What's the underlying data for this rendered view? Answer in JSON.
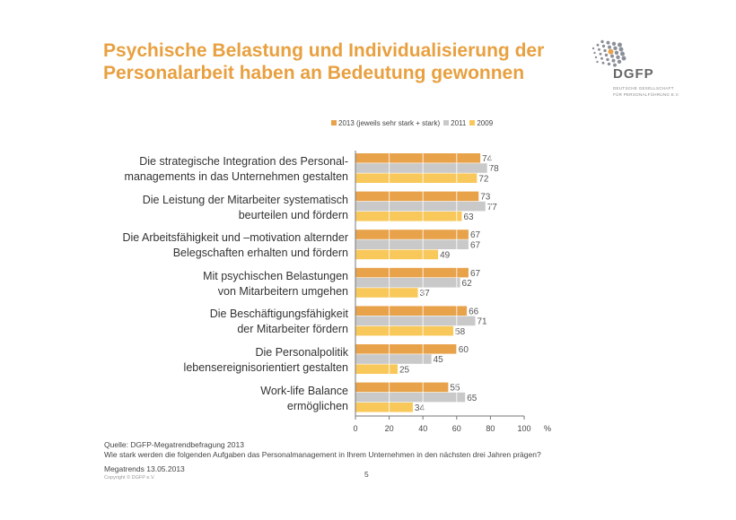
{
  "title": "Psychische Belastung und Individualisierung der Personalarbeit haben an Bedeutung gewonnen",
  "logo": {
    "name": "DGFP",
    "line1": "DEUTSCHE GESELLSCHAFT",
    "line2": "FÜR PERSONALFÜHRUNG E.V."
  },
  "chart_data": {
    "type": "bar",
    "orientation": "horizontal",
    "categories": [
      "Die strategische Integration des Personal-\nmanagements in das Unternehmen gestalten",
      "Die Leistung der Mitarbeiter systematisch\nbeurteilen und fördern",
      "Die Arbeitsfähigkeit und –motivation alternder\nBelegschaften erhalten und fördern",
      "Mit psychischen Belastungen\nvon Mitarbeitern umgehen",
      "Die Beschäftigungsfähigkeit\nder Mitarbeiter fördern",
      "Die Personalpolitik\nlebensereignisorientiert gestalten",
      "Work-life Balance\nermöglichen"
    ],
    "series": [
      {
        "name": "2013 (jeweils sehr stark + stark)",
        "color": "#E8A24A",
        "values": [
          74,
          73,
          67,
          67,
          66,
          60,
          55
        ]
      },
      {
        "name": "2011",
        "color": "#C9C9C9",
        "values": [
          78,
          77,
          67,
          62,
          71,
          45,
          65
        ]
      },
      {
        "name": "2009",
        "color": "#F9C85A",
        "values": [
          72,
          63,
          49,
          37,
          58,
          25,
          34
        ]
      }
    ],
    "xlim": [
      0,
      100
    ],
    "xticks": [
      "0",
      "20",
      "40",
      "60",
      "80",
      "100"
    ],
    "xunit": "%",
    "legend_position": "top",
    "grid": true
  },
  "footer": {
    "source": "Quelle: DGFP-Megatrendbefragung 2013",
    "question": "Wie stark werden die folgenden Aufgaben das Personalmanagement in Ihrem Unternehmen in den nächsten drei Jahren prägen?",
    "date": "Megatrends 13.05.2013",
    "copyright": "Copyright © DGFP e.V.",
    "page": "5"
  }
}
